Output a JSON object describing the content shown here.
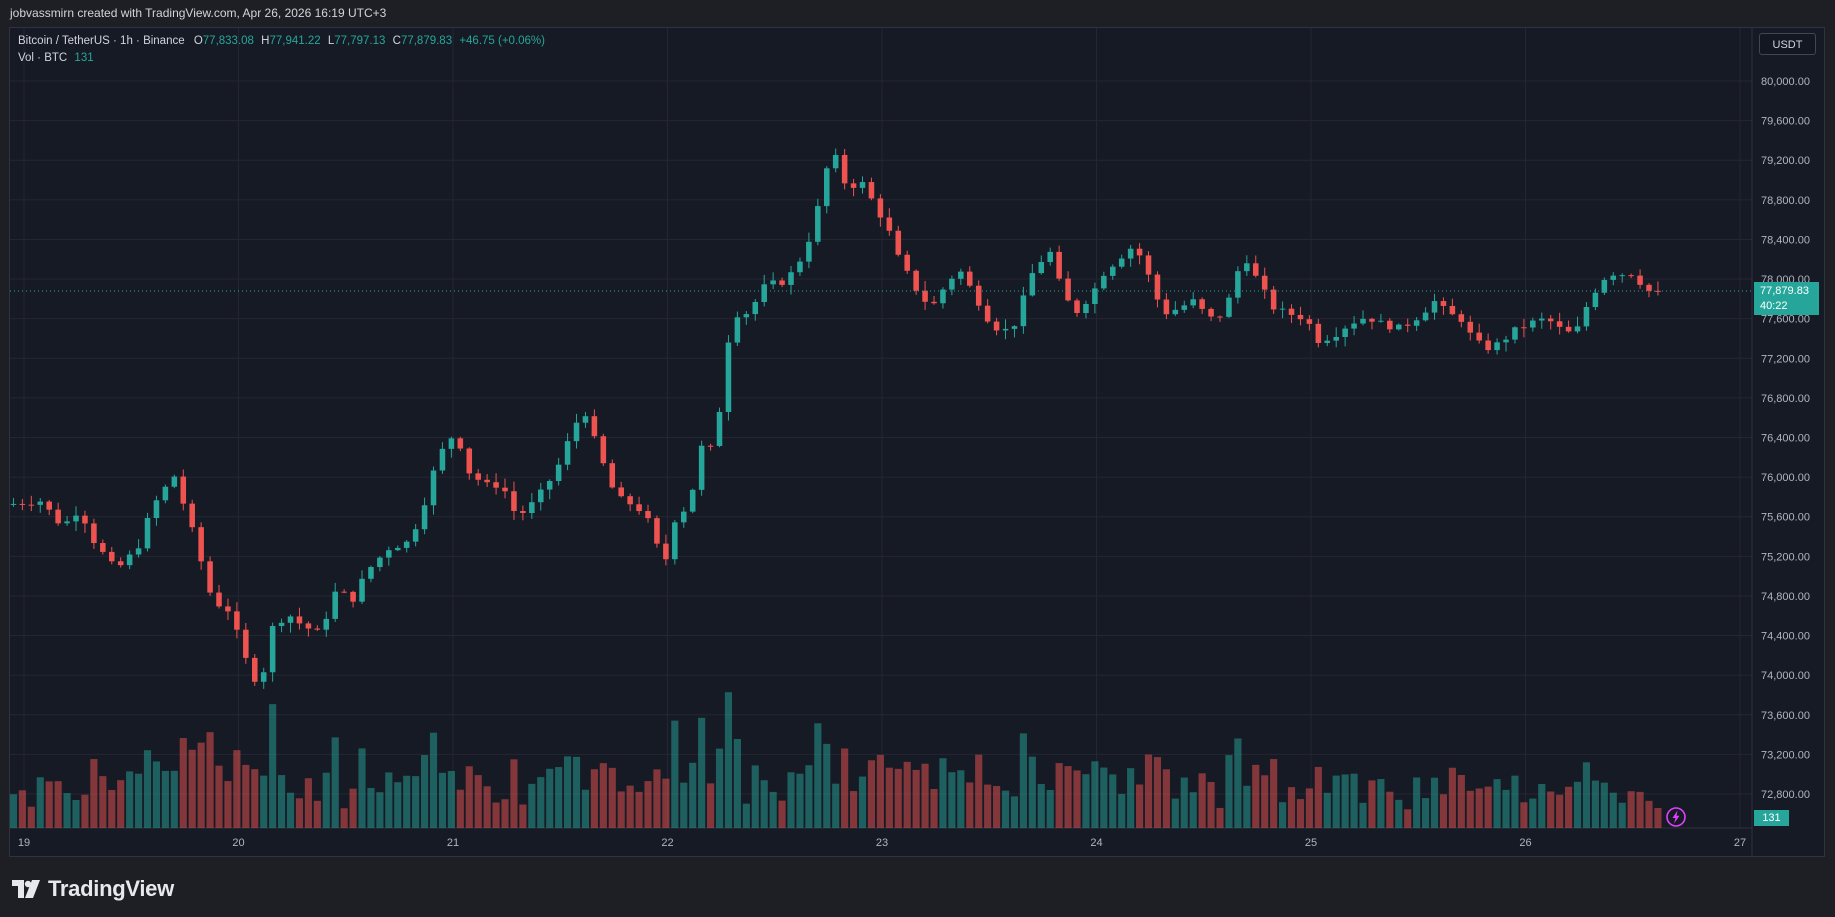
{
  "header": {
    "created_by": "jobvassmirn created with TradingView.com, Apr 26, 2026 16:19 UTC+3"
  },
  "legend": {
    "symbol": "Bitcoin / TetherUS · 1h · Binance",
    "open_label": "O",
    "open": "77,833.08",
    "high_label": "H",
    "high": "77,941.22",
    "low_label": "L",
    "low": "77,797.13",
    "close_label": "C",
    "close": "77,879.83",
    "change": "+46.75 (+0.06%)",
    "volume_label": "Vol · BTC",
    "volume": "131"
  },
  "price_scale": {
    "currency": "USDT",
    "last_price": "77,879.83",
    "countdown": "40:22",
    "volume_marker": "131"
  },
  "branding": {
    "logo_text": "TradingView",
    "logo_icon": "tradingview-logo-icon",
    "bolt_icon": "lightning-icon"
  },
  "colors": {
    "up": "#26a69a",
    "down": "#ef5350",
    "background": "#161a25",
    "grid": "#242733"
  },
  "chart_data": {
    "type": "candlestick",
    "title": "Bitcoin / TetherUS · 1h · Binance",
    "ylabel": "USDT",
    "ylim": [
      72500,
      80300
    ],
    "yticks": [
      72800,
      73200,
      73600,
      74000,
      74400,
      74800,
      75200,
      75600,
      76000,
      76400,
      76800,
      77200,
      77600,
      78000,
      78400,
      78800,
      79200,
      79600,
      80000
    ],
    "ytick_labels": [
      "72,800.00",
      "73,200.00",
      "73,600.00",
      "74,000.00",
      "74,400.00",
      "74,800.00",
      "75,200.00",
      "75,600.00",
      "76,000.00",
      "76,400.00",
      "76,800.00",
      "77,200.00",
      "77,600.00",
      "78,000.00",
      "78,400.00",
      "78,800.00",
      "79,200.00",
      "79,600.00",
      "80,000.00"
    ],
    "xtick_labels": [
      "19",
      "20",
      "21",
      "22",
      "23",
      "24",
      "25",
      "26",
      "27"
    ],
    "x_units": "days (April 2026), hourly candles",
    "xlim": [
      18.92,
      27.01
    ],
    "last_price": 77879.83,
    "anchors": [
      [
        18.93,
        75720
      ],
      [
        19.1,
        75760
      ],
      [
        19.2,
        75500
      ],
      [
        19.28,
        75680
      ],
      [
        19.35,
        75340
      ],
      [
        19.45,
        75060
      ],
      [
        19.55,
        75280
      ],
      [
        19.62,
        75700
      ],
      [
        19.72,
        76020
      ],
      [
        19.8,
        75500
      ],
      [
        19.9,
        74750
      ],
      [
        19.98,
        74650
      ],
      [
        20.05,
        74180
      ],
      [
        20.12,
        73860
      ],
      [
        20.18,
        74480
      ],
      [
        20.25,
        74620
      ],
      [
        20.32,
        74500
      ],
      [
        20.4,
        74420
      ],
      [
        20.48,
        74880
      ],
      [
        20.55,
        74750
      ],
      [
        20.62,
        75050
      ],
      [
        20.72,
        75280
      ],
      [
        20.82,
        75350
      ],
      [
        20.88,
        75690
      ],
      [
        20.93,
        76050
      ],
      [
        21.0,
        76420
      ],
      [
        21.05,
        76350
      ],
      [
        21.1,
        76030
      ],
      [
        21.18,
        75920
      ],
      [
        21.25,
        75920
      ],
      [
        21.32,
        75590
      ],
      [
        21.4,
        75750
      ],
      [
        21.5,
        76050
      ],
      [
        21.58,
        76480
      ],
      [
        21.63,
        76700
      ],
      [
        21.7,
        76250
      ],
      [
        21.78,
        75800
      ],
      [
        21.88,
        75700
      ],
      [
        21.95,
        75500
      ],
      [
        22.0,
        75050
      ],
      [
        22.06,
        75620
      ],
      [
        22.12,
        75700
      ],
      [
        22.18,
        76300
      ],
      [
        22.24,
        76280
      ],
      [
        22.32,
        77640
      ],
      [
        22.4,
        77660
      ],
      [
        22.48,
        77950
      ],
      [
        22.55,
        77960
      ],
      [
        22.62,
        78100
      ],
      [
        22.7,
        78500
      ],
      [
        22.76,
        79100
      ],
      [
        22.8,
        79250
      ],
      [
        22.86,
        78900
      ],
      [
        22.92,
        79000
      ],
      [
        23.0,
        78700
      ],
      [
        23.05,
        78500
      ],
      [
        23.1,
        78200
      ],
      [
        23.18,
        77900
      ],
      [
        23.25,
        77700
      ],
      [
        23.32,
        77950
      ],
      [
        23.38,
        78100
      ],
      [
        23.45,
        77850
      ],
      [
        23.52,
        77580
      ],
      [
        23.58,
        77460
      ],
      [
        23.64,
        77550
      ],
      [
        23.72,
        78050
      ],
      [
        23.8,
        78300
      ],
      [
        23.86,
        77880
      ],
      [
        23.92,
        77650
      ],
      [
        24.0,
        77850
      ],
      [
        24.05,
        78050
      ],
      [
        24.12,
        78200
      ],
      [
        24.2,
        78350
      ],
      [
        24.27,
        78000
      ],
      [
        24.33,
        77650
      ],
      [
        24.4,
        77700
      ],
      [
        24.47,
        77780
      ],
      [
        24.55,
        77600
      ],
      [
        24.62,
        77650
      ],
      [
        24.67,
        78050
      ],
      [
        24.72,
        78200
      ],
      [
        24.78,
        77950
      ],
      [
        24.85,
        77700
      ],
      [
        24.92,
        77650
      ],
      [
        25.0,
        77600
      ],
      [
        25.05,
        77380
      ],
      [
        25.12,
        77420
      ],
      [
        25.2,
        77550
      ],
      [
        25.28,
        77620
      ],
      [
        25.36,
        77540
      ],
      [
        25.44,
        77500
      ],
      [
        25.52,
        77620
      ],
      [
        25.6,
        77780
      ],
      [
        25.66,
        77650
      ],
      [
        25.72,
        77600
      ],
      [
        25.78,
        77380
      ],
      [
        25.84,
        77300
      ],
      [
        25.9,
        77350
      ],
      [
        25.97,
        77480
      ],
      [
        26.05,
        77560
      ],
      [
        26.12,
        77600
      ],
      [
        26.18,
        77500
      ],
      [
        26.25,
        77430
      ],
      [
        26.3,
        77700
      ],
      [
        26.37,
        77980
      ],
      [
        26.42,
        78060
      ],
      [
        26.47,
        78050
      ],
      [
        26.53,
        78060
      ],
      [
        26.58,
        77880
      ],
      [
        26.62,
        77880
      ]
    ],
    "volume_ylim": [
      0,
      220
    ],
    "volume_range_note": "Volume bars (BTC), last bar 131"
  }
}
